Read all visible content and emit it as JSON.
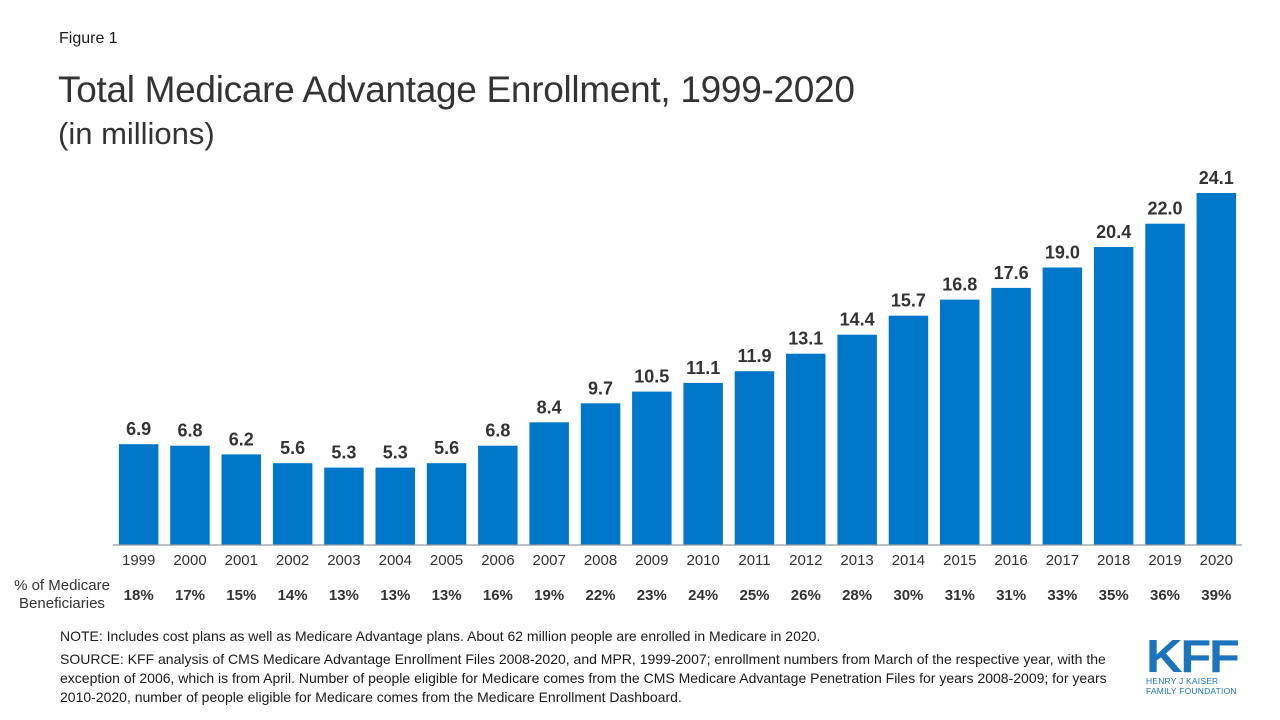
{
  "figure_label": "Figure 1",
  "colors": {
    "bar": "#0077c8",
    "axis": "#999999",
    "text": "#333333",
    "brand": "#1c75bc"
  },
  "chart_data": {
    "type": "bar",
    "title": "Total Medicare Advantage Enrollment, 1999-2020",
    "subtitle": "(in millions)",
    "xlabel": "",
    "ylabel": "",
    "ylim": [
      0,
      24.1
    ],
    "grid": false,
    "categories": [
      "1999",
      "2000",
      "2001",
      "2002",
      "2003",
      "2004",
      "2005",
      "2006",
      "2007",
      "2008",
      "2009",
      "2010",
      "2011",
      "2012",
      "2013",
      "2014",
      "2015",
      "2016",
      "2017",
      "2018",
      "2019",
      "2020"
    ],
    "values": [
      6.9,
      6.8,
      6.2,
      5.6,
      5.3,
      5.3,
      5.6,
      6.8,
      8.4,
      9.7,
      10.5,
      11.1,
      11.9,
      13.1,
      14.4,
      15.7,
      16.8,
      17.6,
      19.0,
      20.4,
      22.0,
      24.1
    ],
    "value_labels": [
      "6.9",
      "6.8",
      "6.2",
      "5.6",
      "5.3",
      "5.3",
      "5.6",
      "6.8",
      "8.4",
      "9.7",
      "10.5",
      "11.1",
      "11.9",
      "13.1",
      "14.4",
      "15.7",
      "16.8",
      "17.6",
      "19.0",
      "20.4",
      "22.0",
      "24.1"
    ],
    "secondary_row": {
      "label_line1": "% of Medicare",
      "label_line2": "Beneficiaries",
      "values": [
        "18%",
        "17%",
        "15%",
        "14%",
        "13%",
        "13%",
        "13%",
        "16%",
        "19%",
        "22%",
        "23%",
        "24%",
        "25%",
        "26%",
        "28%",
        "30%",
        "31%",
        "31%",
        "33%",
        "35%",
        "36%",
        "39%"
      ]
    }
  },
  "note": "NOTE: Includes cost plans as well as Medicare Advantage plans. About 62 million people are enrolled in Medicare in 2020.",
  "source": "SOURCE: KFF analysis of CMS Medicare Advantage Enrollment Files 2008-2020, and MPR, 1999-2007; enrollment numbers from March of the respective year, with the exception of 2006, which is from April. Number of people eligible for Medicare comes from the CMS Medicare Advantage Penetration Files for years 2008-2009; for years 2010-2020, number of people eligible for Medicare comes from the Medicare Enrollment Dashboard.",
  "logo": {
    "mark": "KFF",
    "line1": "HENRY J KAISER",
    "line2": "FAMILY FOUNDATION"
  }
}
